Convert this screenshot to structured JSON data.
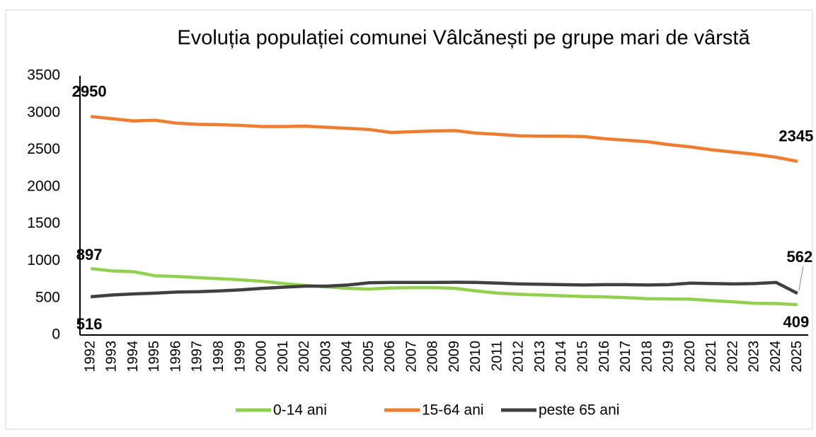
{
  "chart_data": {
    "type": "line",
    "title": "Evoluția populației comunei Vâlcănești pe grupe mari de vârstă",
    "categories": [
      "1992",
      "1993",
      "1994",
      "1995",
      "1996",
      "1997",
      "1998",
      "1999",
      "2000",
      "2001",
      "2002",
      "2003",
      "2004",
      "2005",
      "2006",
      "2007",
      "2008",
      "2009",
      "2010",
      "2011",
      "2012",
      "2013",
      "2014",
      "2015",
      "2016",
      "2017",
      "2018",
      "2019",
      "2020",
      "2021",
      "2022",
      "2023",
      "2024",
      "2025"
    ],
    "series": [
      {
        "name": "0-14 ani",
        "color": "#92d050",
        "values": [
          897,
          865,
          855,
          800,
          790,
          775,
          760,
          745,
          725,
          695,
          670,
          650,
          630,
          620,
          635,
          640,
          640,
          630,
          595,
          565,
          550,
          540,
          530,
          520,
          515,
          505,
          490,
          487,
          484,
          465,
          448,
          428,
          425,
          409
        ]
      },
      {
        "name": "15-64 ani",
        "color": "#ed7d31",
        "values": [
          2950,
          2920,
          2890,
          2900,
          2860,
          2845,
          2840,
          2830,
          2815,
          2815,
          2820,
          2805,
          2790,
          2775,
          2735,
          2745,
          2755,
          2760,
          2725,
          2710,
          2690,
          2685,
          2685,
          2680,
          2650,
          2630,
          2610,
          2570,
          2540,
          2500,
          2470,
          2440,
          2400,
          2345
        ]
      },
      {
        "name": "peste 65 ani",
        "color": "#404040",
        "values": [
          516,
          540,
          555,
          565,
          580,
          585,
          595,
          610,
          630,
          645,
          660,
          660,
          675,
          705,
          710,
          710,
          710,
          712,
          710,
          700,
          690,
          685,
          680,
          675,
          680,
          680,
          675,
          680,
          700,
          695,
          690,
          695,
          710,
          562
        ]
      }
    ],
    "ylim": [
      0,
      3500
    ],
    "yticks": [
      0,
      500,
      1000,
      1500,
      2000,
      2500,
      3000,
      3500
    ],
    "grid": false,
    "legend": "bottom"
  }
}
